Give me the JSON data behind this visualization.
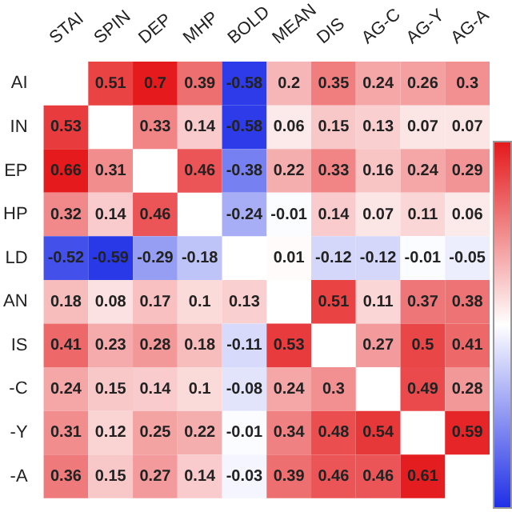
{
  "chart_data": {
    "type": "heatmap",
    "categories": [
      "STAI",
      "SPIN",
      "DEP",
      "MHP",
      "BOLD",
      "MEAN",
      "DIS",
      "AG-C",
      "AG-Y",
      "AG-A"
    ],
    "y_categories": [
      "AI",
      "IN",
      "EP",
      "HP",
      "LD",
      "AN",
      "IS",
      "-C",
      "-Y",
      "-A"
    ],
    "cells": [
      [
        null,
        0.51,
        0.7,
        0.39,
        -0.58,
        0.2,
        0.35,
        0.24,
        0.26,
        0.3
      ],
      [
        0.53,
        null,
        0.33,
        0.14,
        -0.58,
        0.06,
        0.15,
        0.13,
        0.07,
        0.07
      ],
      [
        0.66,
        0.31,
        null,
        0.46,
        -0.38,
        0.22,
        0.33,
        0.16,
        0.24,
        0.29
      ],
      [
        0.32,
        0.14,
        0.46,
        null,
        -0.24,
        -0.01,
        0.14,
        0.07,
        0.11,
        0.06
      ],
      [
        -0.52,
        -0.59,
        -0.29,
        -0.18,
        null,
        0.01,
        -0.12,
        -0.12,
        -0.01,
        -0.05
      ],
      [
        0.18,
        0.08,
        0.17,
        0.1,
        0.13,
        null,
        0.51,
        0.11,
        0.37,
        0.38
      ],
      [
        0.41,
        0.23,
        0.28,
        0.18,
        -0.11,
        0.53,
        null,
        0.27,
        0.5,
        0.41
      ],
      [
        0.24,
        0.15,
        0.14,
        0.1,
        -0.08,
        0.24,
        0.3,
        null,
        0.49,
        0.28
      ],
      [
        0.31,
        0.12,
        0.25,
        0.22,
        -0.01,
        0.34,
        0.48,
        0.54,
        null,
        0.59
      ],
      [
        0.36,
        0.15,
        0.27,
        0.14,
        -0.03,
        0.39,
        0.46,
        0.46,
        0.61,
        null
      ]
    ],
    "data_labels": true
  }
}
